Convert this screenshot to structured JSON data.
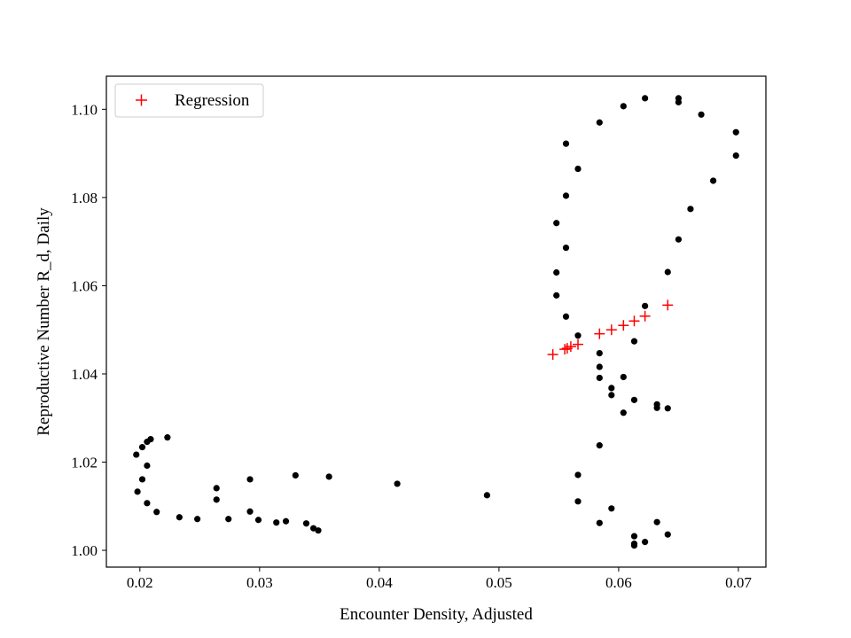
{
  "chart_data": {
    "type": "scatter",
    "title": "",
    "xlabel": "Encounter Density, Adjusted",
    "ylabel": "Reproductive Number R_d, Daily",
    "xlim": [
      0.0172,
      0.0723
    ],
    "ylim": [
      0.9962,
      1.1075
    ],
    "xticks": [
      0.02,
      0.03,
      0.04,
      0.05,
      0.06,
      0.07
    ],
    "xtick_labels": [
      "0.02",
      "0.03",
      "0.04",
      "0.05",
      "0.06",
      "0.07"
    ],
    "yticks": [
      1.0,
      1.02,
      1.04,
      1.06,
      1.08,
      1.1
    ],
    "ytick_labels": [
      "1.00",
      "1.02",
      "1.04",
      "1.06",
      "1.08",
      "1.10"
    ],
    "grid": false,
    "legend_position": "top-left",
    "series": [
      {
        "name": "",
        "marker": "dot",
        "color": "#000000",
        "points": [
          [
            0.0223,
            1.0256
          ],
          [
            0.0209,
            1.0252
          ],
          [
            0.0206,
            1.0246
          ],
          [
            0.0202,
            1.0234
          ],
          [
            0.0197,
            1.0217
          ],
          [
            0.0206,
            1.0192
          ],
          [
            0.0202,
            1.0161
          ],
          [
            0.0198,
            1.0133
          ],
          [
            0.0206,
            1.0107
          ],
          [
            0.0214,
            1.0087
          ],
          [
            0.0233,
            1.0075
          ],
          [
            0.0248,
            1.0071
          ],
          [
            0.0264,
            1.0115
          ],
          [
            0.0264,
            1.0141
          ],
          [
            0.0274,
            1.0071
          ],
          [
            0.0292,
            1.0088
          ],
          [
            0.0292,
            1.0161
          ],
          [
            0.0299,
            1.0069
          ],
          [
            0.0314,
            1.0063
          ],
          [
            0.0322,
            1.0066
          ],
          [
            0.033,
            1.017
          ],
          [
            0.0339,
            1.0061
          ],
          [
            0.0345,
            1.005
          ],
          [
            0.0349,
            1.0045
          ],
          [
            0.0358,
            1.0167
          ],
          [
            0.0415,
            1.0151
          ],
          [
            0.049,
            1.0125
          ],
          [
            0.0556,
            1.0922
          ],
          [
            0.0566,
            1.0865
          ],
          [
            0.0556,
            1.0804
          ],
          [
            0.0548,
            1.0742
          ],
          [
            0.0556,
            1.0686
          ],
          [
            0.0548,
            1.063
          ],
          [
            0.0548,
            1.0578
          ],
          [
            0.0556,
            1.053
          ],
          [
            0.0566,
            1.0487
          ],
          [
            0.0584,
            1.0447
          ],
          [
            0.0584,
            1.0416
          ],
          [
            0.0584,
            1.0391
          ],
          [
            0.0594,
            1.0368
          ],
          [
            0.0594,
            1.0352
          ],
          [
            0.0604,
            1.0393
          ],
          [
            0.0604,
            1.0312
          ],
          [
            0.0613,
            1.0341
          ],
          [
            0.0613,
            1.0474
          ],
          [
            0.0622,
            1.0554
          ],
          [
            0.0632,
            1.0331
          ],
          [
            0.0632,
            1.0323
          ],
          [
            0.0641,
            1.0322
          ],
          [
            0.0641,
            1.0631
          ],
          [
            0.065,
            1.0705
          ],
          [
            0.066,
            1.0774
          ],
          [
            0.0679,
            1.0838
          ],
          [
            0.0698,
            1.0895
          ],
          [
            0.0698,
            1.0948
          ],
          [
            0.0669,
            1.0988
          ],
          [
            0.065,
            1.1016
          ],
          [
            0.065,
            1.1025
          ],
          [
            0.0622,
            1.1025
          ],
          [
            0.0604,
            1.1007
          ],
          [
            0.0584,
            1.097
          ],
          [
            0.0584,
            1.0238
          ],
          [
            0.0566,
            1.0171
          ],
          [
            0.0566,
            1.0111
          ],
          [
            0.0594,
            1.0095
          ],
          [
            0.0584,
            1.0062
          ],
          [
            0.0613,
            1.0032
          ],
          [
            0.0613,
            1.0011
          ],
          [
            0.0613,
            1.0015
          ],
          [
            0.0622,
            1.0019
          ],
          [
            0.0632,
            1.0064
          ],
          [
            0.0641,
            1.0036
          ]
        ]
      },
      {
        "name": "Regression",
        "marker": "plus",
        "color": "#ff0000",
        "points": [
          [
            0.0545,
            1.0444
          ],
          [
            0.0555,
            1.0456
          ],
          [
            0.0557,
            1.0458
          ],
          [
            0.056,
            1.0462
          ],
          [
            0.0566,
            1.0467
          ],
          [
            0.0584,
            1.0491
          ],
          [
            0.0594,
            1.05
          ],
          [
            0.0604,
            1.051
          ],
          [
            0.0613,
            1.052
          ],
          [
            0.0622,
            1.0531
          ],
          [
            0.0641,
            1.0556
          ]
        ]
      }
    ]
  }
}
